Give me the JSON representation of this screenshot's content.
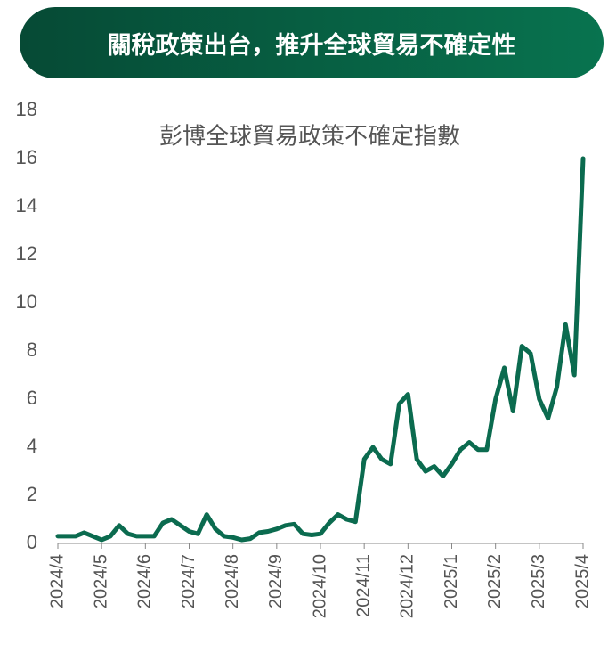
{
  "header": {
    "title": "關稅政策出台，推升全球貿易不確定性"
  },
  "chart_data": {
    "type": "line",
    "title": "彭博全球貿易政策不確定指數",
    "categories": [
      "2024/4",
      null,
      null,
      null,
      null,
      "2024/5",
      null,
      null,
      null,
      null,
      "2024/6",
      null,
      null,
      null,
      null,
      "2024/7",
      null,
      null,
      null,
      null,
      "2024/8",
      null,
      null,
      null,
      null,
      "2024/9",
      null,
      null,
      null,
      null,
      "2024/10",
      null,
      null,
      null,
      null,
      "2024/11",
      null,
      null,
      null,
      null,
      "2024/12",
      null,
      null,
      null,
      null,
      "2025/1",
      null,
      null,
      null,
      null,
      "2025/2",
      null,
      null,
      null,
      null,
      "2025/3",
      null,
      null,
      null,
      null,
      "2025/4"
    ],
    "series": [
      {
        "name": "彭博全球貿易政策不確定指數",
        "color": "#0b6b4f",
        "values": [
          0.3,
          0.3,
          0.3,
          0.45,
          0.3,
          0.15,
          0.3,
          0.75,
          0.4,
          0.3,
          0.3,
          0.3,
          0.85,
          1.0,
          0.75,
          0.5,
          0.4,
          1.2,
          0.6,
          0.3,
          0.25,
          0.15,
          0.2,
          0.45,
          0.5,
          0.6,
          0.75,
          0.8,
          0.4,
          0.35,
          0.4,
          0.85,
          1.2,
          1.0,
          0.9,
          3.5,
          4.0,
          3.5,
          3.3,
          5.8,
          6.2,
          3.5,
          3.0,
          3.2,
          2.8,
          3.3,
          3.9,
          4.2,
          3.9,
          3.9,
          6.0,
          7.3,
          5.5,
          8.2,
          7.9,
          6.0,
          5.2,
          6.5,
          9.1,
          7.0,
          16.0
        ]
      }
    ],
    "ylim": [
      0,
      18
    ],
    "yticks": [
      0,
      2,
      4,
      6,
      8,
      10,
      12,
      14,
      16,
      18
    ],
    "grid": false
  }
}
